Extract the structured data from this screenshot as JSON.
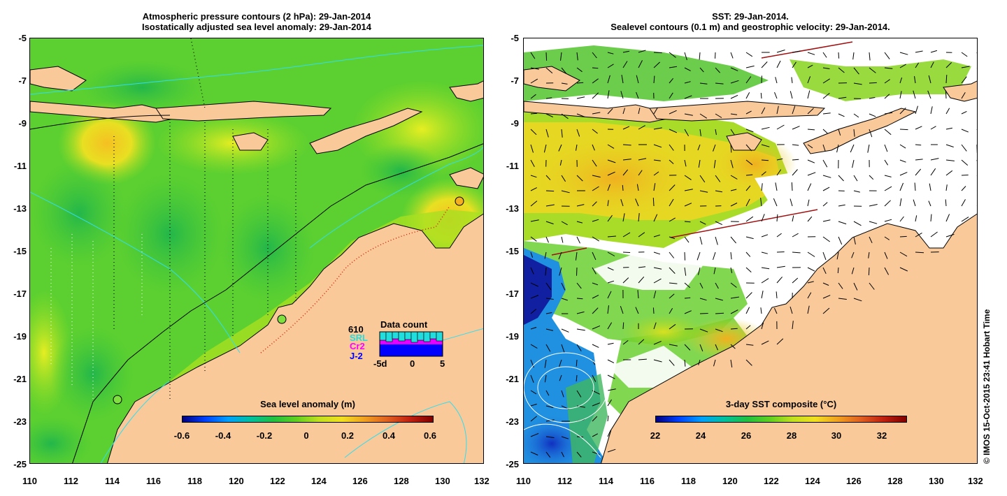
{
  "left_panel": {
    "title_line1": "Atmospheric pressure contours (2 hPa): 29-Jan-2014",
    "title_line2": "Isostatically adjusted sea level anomaly: 29-Jan-2014",
    "colorbar_title": "Sea level anomaly (m)",
    "colorbar_ticks": [
      "-0.6",
      "-0.4",
      "-0.2",
      "0",
      "0.2",
      "0.4",
      "0.6"
    ],
    "inset": {
      "title": "Data count",
      "count": "610",
      "satellites": [
        {
          "name": "SRL",
          "color": "#22dddd"
        },
        {
          "name": "Cr2",
          "color": "#ff00ff"
        },
        {
          "name": "J-2",
          "color": "#0000ff"
        }
      ],
      "x_ticks": [
        "-5d",
        "0",
        "5"
      ]
    }
  },
  "right_panel": {
    "title_line1": "SST: 29-Jan-2014.",
    "title_line2": "Sealevel contours (0.1 m) and geostrophic velocity: 29-Jan-2014.",
    "colorbar_title": "3-day SST composite (°C)",
    "colorbar_ticks": [
      "22",
      "24",
      "26",
      "28",
      "30",
      "32"
    ]
  },
  "x_ticks": [
    "110",
    "112",
    "114",
    "116",
    "118",
    "120",
    "122",
    "124",
    "126",
    "128",
    "130",
    "132"
  ],
  "y_ticks": [
    "-5",
    "-7",
    "-9",
    "-11",
    "-13",
    "-15",
    "-17",
    "-19",
    "-21",
    "-23",
    "-25"
  ],
  "copyright": "© IMOS 15-Oct-2015 23:41 Hobart Time",
  "colors": {
    "land": "#f9c99a",
    "coast": "#000000",
    "contour_cyan": "#33ddee"
  }
}
